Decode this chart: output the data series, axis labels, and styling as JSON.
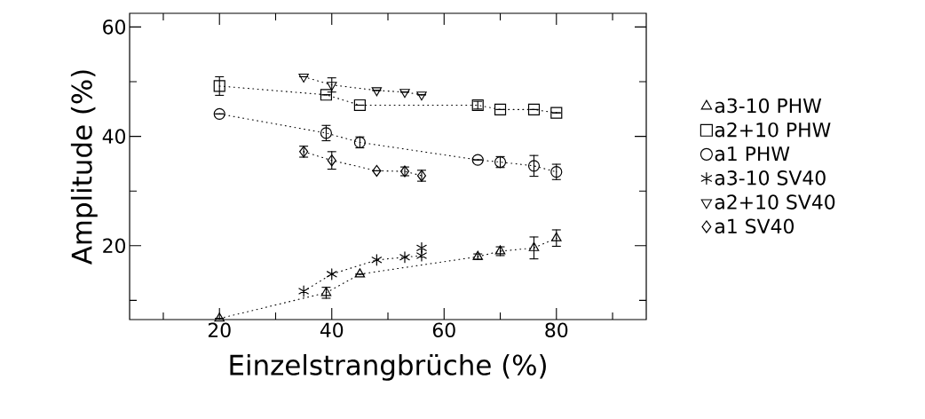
{
  "chart_data": {
    "type": "line",
    "xlabel": "Einzelstrangbrüche (%)",
    "ylabel": "Amplitude (%)",
    "xlim": [
      4,
      96
    ],
    "ylim": [
      6.5,
      62.5
    ],
    "xticks": [
      {
        "value": 10,
        "label": null
      },
      20,
      {
        "value": 30,
        "label": null
      },
      40,
      {
        "value": 50,
        "label": null
      },
      60,
      {
        "value": 70,
        "label": null
      },
      80,
      {
        "value": 90,
        "label": null
      }
    ],
    "yticks": [
      {
        "value": 10,
        "label": null
      },
      20,
      {
        "value": 30,
        "label": null
      },
      40,
      {
        "value": 50,
        "label": null
      },
      60
    ],
    "grid": false,
    "legend": "right",
    "line_style": "dotted",
    "series": [
      {
        "name": "a3-10 PHW",
        "color": "#000000",
        "marker": "triangle",
        "x": [
          20,
          39,
          45,
          66,
          70,
          76,
          80
        ],
        "values": [
          6.7,
          11.4,
          14.8,
          18.0,
          19.0,
          19.6,
          21.4
        ],
        "errors": [
          null,
          1.0,
          null,
          0.5,
          0.8,
          2.0,
          1.5
        ]
      },
      {
        "name": "a2+10 PHW",
        "color": "#000000",
        "marker": "square",
        "x": [
          20,
          39,
          45,
          66,
          70,
          76,
          80
        ],
        "values": [
          49.2,
          47.6,
          45.7,
          45.7,
          44.9,
          44.9,
          44.3
        ],
        "errors": [
          1.7,
          null,
          null,
          0.7,
          null,
          null,
          null
        ]
      },
      {
        "name": "a1 PHW",
        "color": "#000000",
        "marker": "circle",
        "x": [
          20,
          39,
          45,
          66,
          70,
          76,
          80
        ],
        "values": [
          44.1,
          40.6,
          38.9,
          35.7,
          35.3,
          34.6,
          33.5
        ],
        "errors": [
          null,
          1.4,
          1.0,
          null,
          1.0,
          1.9,
          1.4
        ]
      },
      {
        "name": "a3-10 SV40",
        "color": "#000000",
        "marker": "cross",
        "x": [
          35,
          40,
          48,
          53,
          56,
          56
        ],
        "values": [
          11.7,
          14.8,
          17.4,
          17.9,
          18.2,
          19.6
        ]
      },
      {
        "name": "a2+10 SV40",
        "color": "#000000",
        "marker": "triangle_down",
        "x": [
          35,
          40,
          48,
          53,
          56
        ],
        "values": [
          50.9,
          49.4,
          48.4,
          48.1,
          47.6
        ],
        "errors": [
          null,
          1.3,
          null,
          null,
          null
        ]
      },
      {
        "name": "a1 SV40",
        "color": "#000000",
        "marker": "diamond",
        "x": [
          35,
          40,
          48,
          53,
          56
        ],
        "values": [
          37.2,
          35.6,
          33.7,
          33.6,
          32.8
        ],
        "errors": [
          1.0,
          1.6,
          null,
          0.8,
          1.0
        ]
      }
    ]
  }
}
